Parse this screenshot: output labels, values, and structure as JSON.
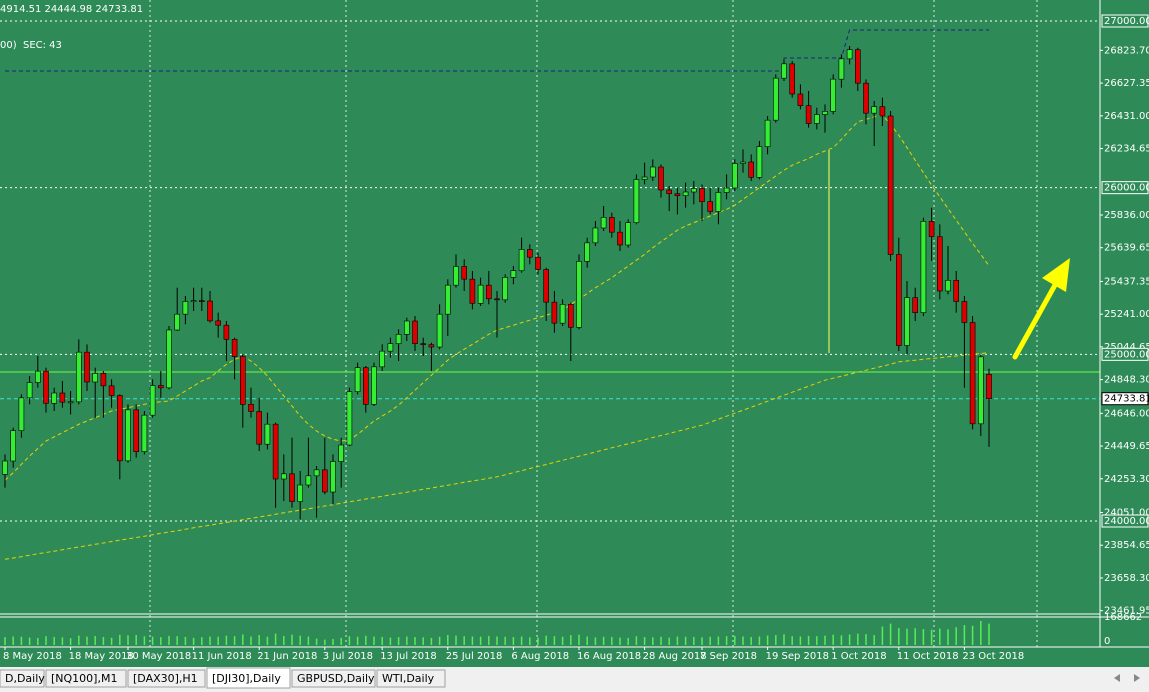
{
  "header": {
    "lines": [
      "4914.51 24444.98 24733.81",
      "00)  SEC: 43"
    ]
  },
  "tabs": [
    "D,Daily",
    "[NQ100],M1",
    "[DAX30],H1",
    "[DJI30],Daily",
    "GBPUSD,Daily",
    "WTI,Daily"
  ],
  "active_tab": 3,
  "chart_data": {
    "type": "candlestick",
    "background": "#2e8b57",
    "up_color": "#33ee33",
    "down_color": "#dd0000",
    "categories": [
      "8 May 2018",
      null,
      null,
      null,
      null,
      null,
      null,
      null,
      "18 May 2018",
      null,
      null,
      null,
      null,
      null,
      null,
      "30 May 2018",
      null,
      null,
      null,
      null,
      null,
      null,
      null,
      "11 Jun 2018",
      null,
      null,
      null,
      null,
      null,
      null,
      null,
      "21 Jun 2018",
      null,
      null,
      null,
      null,
      null,
      null,
      null,
      "3 Jul 2018",
      null,
      null,
      null,
      null,
      null,
      null,
      "13 Jul 2018",
      null,
      null,
      null,
      null,
      null,
      null,
      null,
      "25 Jul 2018",
      null,
      null,
      null,
      null,
      null,
      null,
      null,
      "6 Aug 2018",
      null,
      null,
      null,
      null,
      null,
      null,
      null,
      "16 Aug 2018",
      null,
      null,
      null,
      null,
      null,
      null,
      null,
      "28 Aug 2018",
      null,
      null,
      null,
      null,
      null,
      null,
      "7 Sep 2018",
      null,
      null,
      null,
      null,
      null,
      null,
      null,
      "19 Sep 2018",
      null,
      null,
      null,
      null,
      null,
      null,
      null,
      "1 Oct 2018",
      null,
      null,
      null,
      null,
      null,
      null,
      null,
      "11 Oct 2018",
      null,
      null,
      null,
      null,
      null,
      null,
      null,
      "23 Oct 2018",
      null,
      null,
      null
    ],
    "open": [
      24280,
      24360,
      24542,
      24739,
      24831,
      24899,
      24706,
      24768,
      24713,
      24715,
      25013,
      24834,
      24886,
      24811,
      24753,
      24361,
      24667,
      24416,
      24635,
      24813,
      24799,
      25146,
      25241,
      25317,
      25322,
      25320,
      25201,
      25175,
      25090,
      24987,
      24700,
      24657,
      24461,
      24581,
      24252,
      24283,
      24117,
      24216,
      24271,
      24307,
      24174,
      24357,
      24456,
      24776,
      24920,
      24700,
      24925,
      25019,
      25064,
      25120,
      25200,
      25064,
      25058,
      25044,
      25241,
      25415,
      25527,
      25451,
      25306,
      25415,
      25333,
      25327,
      25462,
      25502,
      25629,
      25583,
      25509,
      25313,
      25187,
      25300,
      25162,
      25558,
      25669,
      25758,
      25822,
      25733,
      25656,
      25790,
      26049,
      26064,
      26124,
      25986,
      25964,
      25952,
      25974,
      25995,
      25916,
      25857,
      25971,
      25998,
      26145,
      26154,
      26062,
      26246,
      26405,
      26657,
      26743,
      26562,
      26492,
      26385,
      26439,
      26458,
      26651,
      26773,
      26828,
      26627,
      26447,
      26486,
      26430,
      25599,
      25053,
      25340,
      25250,
      25798,
      25706,
      25380,
      25444,
      25317,
      25191,
      24583,
      24880
    ],
    "high": [
      24400,
      24560,
      24760,
      24870,
      24990,
      24920,
      24800,
      24840,
      24780,
      25090,
      25060,
      24920,
      24900,
      24850,
      24760,
      24700,
      24700,
      24660,
      24850,
      24900,
      25170,
      25400,
      25350,
      25400,
      25400,
      25380,
      25250,
      25200,
      25100,
      25000,
      24800,
      24740,
      24650,
      24590,
      24400,
      24500,
      24300,
      24500,
      24330,
      24500,
      24400,
      24500,
      24800,
      24950,
      24930,
      24950,
      25060,
      25100,
      25150,
      25220,
      25230,
      25100,
      25070,
      25300,
      25450,
      25600,
      25570,
      25500,
      25460,
      25500,
      25380,
      25480,
      25530,
      25700,
      25660,
      25610,
      25520,
      25380,
      25330,
      25310,
      25600,
      25700,
      25800,
      25890,
      25850,
      25800,
      25810,
      26080,
      26150,
      26170,
      26140,
      26010,
      26000,
      26030,
      26040,
      26020,
      26000,
      26000,
      26080,
      26170,
      26230,
      26200,
      26280,
      26430,
      26680,
      26770,
      26760,
      26620,
      26580,
      26480,
      26500,
      26680,
      26800,
      26850,
      26840,
      26650,
      26520,
      26540,
      26460,
      25700,
      25440,
      25400,
      25820,
      25880,
      25780,
      25650,
      25500,
      25350,
      25230,
      25000,
      24914.51
    ],
    "low": [
      24200,
      24320,
      24500,
      24700,
      24800,
      24650,
      24660,
      24680,
      24640,
      24700,
      24780,
      24620,
      24620,
      24680,
      24250,
      24350,
      24380,
      24400,
      24620,
      24740,
      24790,
      25140,
      25180,
      25260,
      25260,
      25190,
      25100,
      24960,
      24850,
      24560,
      24620,
      24420,
      24430,
      24080,
      24120,
      24080,
      24010,
      24200,
      24020,
      24160,
      24100,
      24200,
      24450,
      24760,
      24650,
      24690,
      24900,
      24980,
      24960,
      25080,
      25020,
      24990,
      24900,
      25030,
      25110,
      25400,
      25380,
      25270,
      25290,
      25300,
      25100,
      25310,
      25420,
      25490,
      25540,
      25480,
      25200,
      25130,
      25170,
      24960,
      25150,
      25520,
      25650,
      25740,
      25700,
      25620,
      25640,
      25780,
      26020,
      26040,
      25940,
      25860,
      25840,
      25880,
      25900,
      25800,
      25840,
      25780,
      25930,
      25980,
      26090,
      26040,
      26050,
      26200,
      26390,
      26640,
      26540,
      26470,
      26360,
      26350,
      26330,
      26440,
      26600,
      26740,
      26580,
      26380,
      26250,
      26370,
      25560,
      25020,
      25000,
      25200,
      25230,
      25560,
      25330,
      25360,
      25250,
      24800,
      24550,
      24510,
      24444.98
    ],
    "close": [
      24360,
      24542,
      24739,
      24831,
      24899,
      24706,
      24768,
      24713,
      24715,
      25013,
      24834,
      24886,
      24811,
      24753,
      24361,
      24667,
      24416,
      24635,
      24813,
      24799,
      25146,
      25241,
      25317,
      25322,
      25320,
      25201,
      25175,
      25090,
      24987,
      24700,
      24657,
      24461,
      24581,
      24252,
      24283,
      24117,
      24216,
      24271,
      24307,
      24174,
      24357,
      24456,
      24776,
      24920,
      24700,
      24925,
      25019,
      25064,
      25120,
      25200,
      25064,
      25058,
      25044,
      25241,
      25415,
      25527,
      25451,
      25306,
      25415,
      25333,
      25327,
      25462,
      25502,
      25629,
      25583,
      25509,
      25313,
      25187,
      25300,
      25162,
      25558,
      25669,
      25758,
      25822,
      25733,
      25656,
      25790,
      26049,
      26064,
      26124,
      25986,
      25964,
      25952,
      25974,
      25995,
      25916,
      25857,
      25971,
      25998,
      26145,
      26154,
      26062,
      26246,
      26405,
      26657,
      26743,
      26562,
      26492,
      26385,
      26439,
      26458,
      26651,
      26773,
      26828,
      26627,
      26447,
      26486,
      26430,
      25599,
      25053,
      25340,
      25250,
      25798,
      25706,
      25380,
      25444,
      25317,
      25191,
      24583,
      24985,
      24733.81
    ],
    "volume": [
      55000,
      60000,
      58000,
      52000,
      50000,
      62000,
      57000,
      54000,
      48000,
      66000,
      59000,
      63000,
      56000,
      51000,
      72000,
      68000,
      70000,
      61000,
      58000,
      55000,
      64000,
      62000,
      57000,
      50000,
      55000,
      60000,
      58000,
      66000,
      62000,
      74000,
      60000,
      70000,
      58000,
      80000,
      64000,
      72000,
      66000,
      60000,
      45000,
      38000,
      42000,
      50000,
      62000,
      58000,
      65000,
      60000,
      57000,
      52000,
      55000,
      60000,
      56000,
      54000,
      50000,
      58000,
      70000,
      66000,
      62000,
      60000,
      58000,
      64000,
      60000,
      58000,
      56000,
      60000,
      54000,
      52000,
      66000,
      62000,
      58000,
      70000,
      72000,
      60000,
      54000,
      58000,
      56000,
      52000,
      50000,
      62000,
      56000,
      54000,
      58000,
      52000,
      60000,
      58000,
      56000,
      54000,
      58000,
      60000,
      62000,
      64000,
      60000,
      56000,
      60000,
      66000,
      70000,
      75000,
      62000,
      60000,
      64000,
      62000,
      66000,
      72000,
      68000,
      74000,
      80000,
      76000,
      70000,
      130000,
      150000,
      120000,
      115000,
      118000,
      112000,
      108000,
      116000,
      110000,
      125000,
      140000,
      135000,
      168662,
      150000
    ],
    "volume_ylim": [
      0,
      168662
    ],
    "volume_ticks": [
      168662,
      0
    ],
    "volume_color": "#55ee55",
    "overlays": [
      {
        "color": "#e6d200",
        "dash": true,
        "values": [
          24245,
          24290,
          24340,
          24390,
          24435,
          24480,
          24505,
          24530,
          24555,
          24580,
          24600,
          24620,
          24640,
          24660,
          24670,
          24680,
          24690,
          24700,
          24710,
          24715,
          24720,
          24750,
          24780,
          24810,
          24840,
          24860,
          24900,
          24940,
          24970,
          24985,
          24960,
          24920,
          24870,
          24810,
          24750,
          24690,
          24630,
          24580,
          24540,
          24510,
          24490,
          24480,
          24485,
          24520,
          24560,
          24600,
          24630,
          24660,
          24695,
          24740,
          24785,
          24830,
          24875,
          24920,
          24965,
          25000,
          25030,
          25060,
          25090,
          25120,
          25145,
          25160,
          25175,
          25190,
          25205,
          25220,
          25235,
          25250,
          25265,
          25300,
          25330,
          25365,
          25400,
          25430,
          25460,
          25495,
          25530,
          25565,
          25600,
          25640,
          25675,
          25710,
          25745,
          25770,
          25790,
          25810,
          25830,
          25850,
          25870,
          25895,
          25930,
          25965,
          26000,
          26035,
          26070,
          26105,
          26135,
          26155,
          26175,
          26200,
          26220,
          26240,
          26290,
          26345,
          26395,
          26410,
          26425,
          26435,
          26380,
          26315,
          26240,
          26165,
          26090,
          26015,
          25945,
          25875,
          25805,
          25735,
          25665,
          25600,
          25530
        ]
      },
      {
        "color": "#e6d200",
        "dash": true,
        "values": [
          23770,
          23778,
          23786,
          23795,
          23803,
          23811,
          23819,
          23827,
          23836,
          23844,
          23852,
          23860,
          23868,
          23877,
          23885,
          23893,
          23901,
          23909,
          23918,
          23926,
          23934,
          23942,
          23950,
          23959,
          23967,
          23975,
          23983,
          23991,
          24000,
          24008,
          24016,
          24024,
          24032,
          24041,
          24049,
          24057,
          24065,
          24073,
          24082,
          24090,
          24098,
          24107,
          24115,
          24123,
          24132,
          24140,
          24148,
          24157,
          24165,
          24173,
          24182,
          24190,
          24198,
          24207,
          24215,
          24223,
          24232,
          24240,
          24248,
          24257,
          24265,
          24277,
          24290,
          24302,
          24315,
          24327,
          24339,
          24352,
          24364,
          24377,
          24389,
          24401,
          24414,
          24426,
          24439,
          24451,
          24463,
          24476,
          24488,
          24501,
          24513,
          24525,
          24538,
          24550,
          24563,
          24575,
          24593,
          24611,
          24629,
          24647,
          24665,
          24683,
          24701,
          24719,
          24737,
          24755,
          24773,
          24791,
          24809,
          24827,
          24845,
          24857,
          24869,
          24881,
          24893,
          24905,
          24917,
          24929,
          24941,
          24955,
          24960,
          24965,
          24970,
          24975,
          24980,
          24985,
          24990,
          24995,
          25000,
          25005,
          25010
        ]
      },
      {
        "color": "#1a237e",
        "dash": true,
        "x": [
          0,
          95,
          95,
          102,
          103,
          120
        ],
        "values": [
          26700,
          26700,
          26778,
          26778,
          26946,
          26946
        ]
      }
    ],
    "levels": [
      {
        "value": 24894,
        "color": "#66ff44"
      }
    ],
    "price_line": 24733.81,
    "price_line_color": "#40e0d0",
    "ylim": [
      23442,
      27126
    ],
    "yticks": [
      {
        "value": 27000,
        "label": "27000.00"
      },
      {
        "value": 26823.7,
        "label": "26823.70"
      },
      {
        "value": 26627.35,
        "label": "26627.35"
      },
      {
        "value": 26431,
        "label": "26431.00"
      },
      {
        "value": 26234.65,
        "label": "26234.65"
      },
      {
        "value": 26000,
        "label": "26000.00"
      },
      {
        "value": 25836,
        "label": "25836.00"
      },
      {
        "value": 25639.65,
        "label": "25639.65"
      },
      {
        "value": 25437.35,
        "label": "25437.35"
      },
      {
        "value": 25241,
        "label": "25241.00"
      },
      {
        "value": 25044.65,
        "label": "25044.65"
      },
      {
        "value": 25000,
        "label": "25000.00"
      },
      {
        "value": 24848.3,
        "label": "24848.30"
      },
      {
        "value": 24646,
        "label": "24646.00"
      },
      {
        "value": 24449.65,
        "label": "24449.65"
      },
      {
        "value": 24253.3,
        "label": "24253.30"
      },
      {
        "value": 24051,
        "label": "24051.00"
      },
      {
        "value": 24000,
        "label": "24000.00"
      },
      {
        "value": 23854.65,
        "label": "23854.65"
      },
      {
        "value": 23658.3,
        "label": "23658.30"
      },
      {
        "value": 23461.95,
        "label": "23461.95"
      }
    ],
    "grid": true
  }
}
